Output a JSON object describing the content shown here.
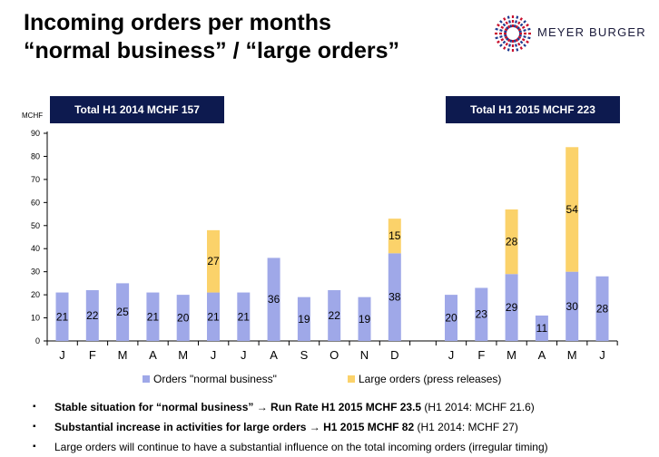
{
  "header": {
    "title_line1": "Incoming orders per months",
    "title_line2": "“normal business” / “large orders”",
    "logo_text": "MEYER BURGER"
  },
  "totals": {
    "h1_2014": "Total H1 2014 MCHF 157",
    "h1_2015": "Total H1 2015 MCHF 223"
  },
  "chart_data": {
    "type": "bar",
    "stacked": true,
    "ylabel": "MCHF",
    "ylim": [
      0,
      90
    ],
    "yticks": [
      0,
      10,
      20,
      30,
      40,
      50,
      60,
      70,
      80,
      90
    ],
    "categories": [
      "J",
      "F",
      "M",
      "A",
      "M",
      "J",
      "J",
      "A",
      "S",
      "O",
      "N",
      "D",
      "J",
      "F",
      "M",
      "A",
      "M",
      "J"
    ],
    "series": [
      {
        "name": "Orders \"normal business\"",
        "color": "#9fa8e8",
        "values": [
          21,
          22,
          25,
          21,
          20,
          21,
          21,
          36,
          19,
          22,
          19,
          38,
          20,
          23,
          29,
          11,
          30,
          28
        ],
        "labels": [
          "21",
          "22",
          "25",
          "21",
          "20",
          "21",
          "21",
          "36",
          "19",
          "22",
          "19",
          "38",
          "20",
          "23",
          "29",
          "11",
          "30",
          "28"
        ]
      },
      {
        "name": "Large orders (press releases)",
        "color": "#fbd26a",
        "values": [
          0,
          0,
          0,
          0,
          0,
          27,
          0,
          0,
          0,
          0,
          0,
          15,
          0,
          0,
          28,
          0,
          54,
          0
        ],
        "labels": [
          "",
          "",
          "",
          "",
          "",
          "27",
          "",
          "",
          "",
          "",
          "",
          "15",
          "",
          "",
          "28",
          "",
          "54",
          ""
        ]
      }
    ],
    "legend_position": "bottom",
    "grid": false
  },
  "bullets": [
    {
      "marker": "▪",
      "bold": "Stable situation for “normal business” → Run Rate H1 2015 MCHF 23.5",
      "rest": " (H1 2014: MCHF 21.6)"
    },
    {
      "marker": "▪",
      "bold": "Substantial increase in activities for large orders → H1 2015 MCHF 82",
      "rest": " (H1 2014: MCHF 27)"
    },
    {
      "marker": "▪",
      "bold": "",
      "rest": "Large orders will continue to have a substantial influence on the total incoming orders (irregular timing)"
    }
  ]
}
